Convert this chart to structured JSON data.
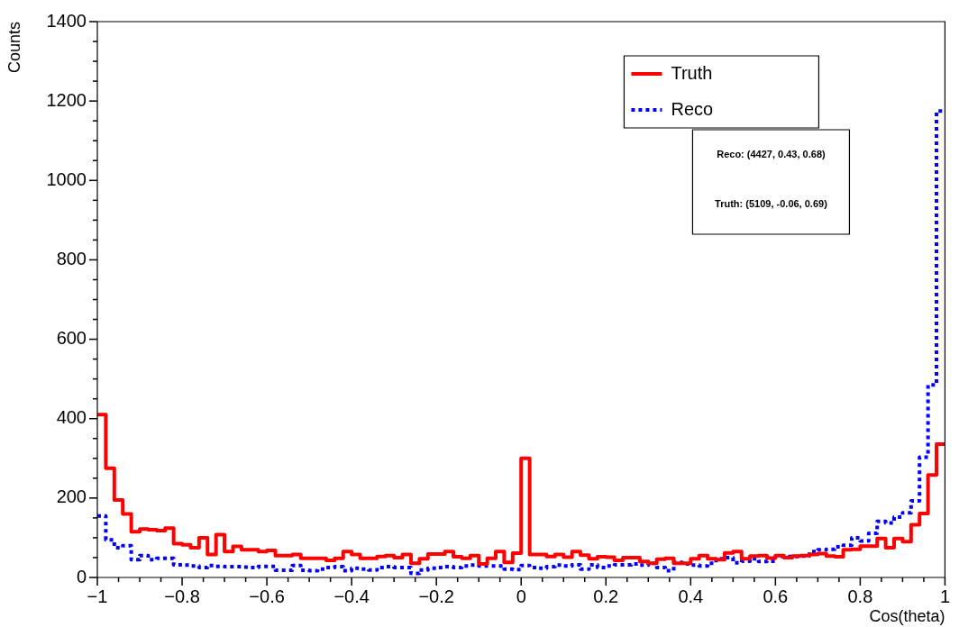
{
  "chart_data": {
    "type": "histogram",
    "xlabel": "Cos(theta)",
    "ylabel": "Counts",
    "bins": [
      -1,
      -0.98,
      -0.96,
      -0.94,
      -0.92,
      -0.9,
      -0.88,
      -0.86,
      -0.84,
      -0.82,
      -0.8,
      -0.78,
      -0.76,
      -0.74,
      -0.72,
      -0.7,
      -0.68,
      -0.66,
      -0.64,
      -0.62,
      -0.6,
      -0.58,
      -0.56,
      -0.54,
      -0.52,
      -0.5,
      -0.48,
      -0.46,
      -0.44,
      -0.42,
      -0.4,
      -0.38,
      -0.36,
      -0.34,
      -0.32,
      -0.3,
      -0.28,
      -0.26,
      -0.24,
      -0.22,
      -0.2,
      -0.18,
      -0.16,
      -0.14,
      -0.12,
      -0.1,
      -0.08,
      -0.06,
      -0.04,
      -0.02,
      0,
      0.02,
      0.04,
      0.06,
      0.08,
      0.1,
      0.12,
      0.14,
      0.16,
      0.18,
      0.2,
      0.22,
      0.24,
      0.26,
      0.28,
      0.3,
      0.32,
      0.34,
      0.36,
      0.38,
      0.4,
      0.42,
      0.44,
      0.46,
      0.48,
      0.5,
      0.52,
      0.54,
      0.56,
      0.58,
      0.6,
      0.62,
      0.64,
      0.66,
      0.68,
      0.7,
      0.72,
      0.74,
      0.76,
      0.78,
      0.8,
      0.82,
      0.84,
      0.86,
      0.88,
      0.9,
      0.92,
      0.94,
      0.96,
      0.98,
      1
    ],
    "series": [
      {
        "name": "Truth",
        "color": "#ff0000",
        "line_style": "solid",
        "values": [
          410,
          275,
          195,
          160,
          115,
          122,
          120,
          118,
          124,
          85,
          82,
          75,
          100,
          58,
          108,
          65,
          78,
          70,
          70,
          65,
          68,
          55,
          55,
          58,
          48,
          48,
          48,
          43,
          48,
          65,
          58,
          48,
          48,
          53,
          55,
          50,
          58,
          36,
          47,
          59,
          59,
          65,
          52,
          48,
          55,
          34,
          48,
          65,
          38,
          61,
          300,
          58,
          58,
          53,
          58,
          51,
          65,
          56,
          47,
          52,
          51,
          43,
          50,
          50,
          40,
          36,
          46,
          48,
          36,
          36,
          47,
          55,
          47,
          45,
          62,
          65,
          47,
          54,
          55,
          49,
          55,
          50,
          54,
          55,
          58,
          60,
          54,
          52,
          70,
          71,
          79,
          79,
          98,
          75,
          98,
          90,
          133,
          161,
          258,
          336
        ]
      },
      {
        "name": "Reco",
        "color": "#0000ff",
        "line_style": "dotted",
        "values": [
          155,
          95,
          75,
          80,
          45,
          55,
          45,
          48,
          48,
          32,
          31,
          29,
          25,
          30,
          28,
          27,
          27,
          26,
          25,
          28,
          28,
          18,
          18,
          30,
          18,
          17,
          21,
          25,
          27,
          17,
          23,
          21,
          19,
          25,
          27,
          25,
          25,
          10,
          19,
          23,
          25,
          27,
          25,
          29,
          31,
          29,
          29,
          29,
          21,
          20,
          30,
          25,
          23,
          27,
          31,
          29,
          32,
          21,
          32,
          25,
          29,
          32,
          32,
          34,
          31,
          36,
          25,
          17,
          38,
          34,
          31,
          29,
          36,
          47,
          50,
          37,
          41,
          47,
          40,
          41,
          53,
          53,
          53,
          54,
          65,
          70,
          71,
          77,
          81,
          100,
          92,
          111,
          141,
          137,
          152,
          163,
          193,
          303,
          485,
          1175
        ]
      }
    ],
    "xlim": [
      -1,
      1
    ],
    "xticks": [
      {
        "value": -1,
        "label": "−1"
      },
      {
        "value": -0.95,
        "label": null
      },
      {
        "value": -0.9,
        "label": null
      },
      {
        "value": -0.85,
        "label": null
      },
      {
        "value": -0.8,
        "label": "−0.8"
      },
      {
        "value": -0.75,
        "label": null
      },
      {
        "value": -0.7,
        "label": null
      },
      {
        "value": -0.65,
        "label": null
      },
      {
        "value": -0.6,
        "label": "−0.6"
      },
      {
        "value": -0.55,
        "label": null
      },
      {
        "value": -0.5,
        "label": null
      },
      {
        "value": -0.45,
        "label": null
      },
      {
        "value": -0.4,
        "label": "−0.4"
      },
      {
        "value": -0.35,
        "label": null
      },
      {
        "value": -0.3,
        "label": null
      },
      {
        "value": -0.25,
        "label": null
      },
      {
        "value": -0.2,
        "label": "−0.2"
      },
      {
        "value": -0.15,
        "label": null
      },
      {
        "value": -0.1,
        "label": null
      },
      {
        "value": -0.05,
        "label": null
      },
      0,
      {
        "value": 0.05,
        "label": null
      },
      {
        "value": 0.1,
        "label": null
      },
      {
        "value": 0.15,
        "label": null
      },
      0.2,
      {
        "value": 0.25,
        "label": null
      },
      {
        "value": 0.3,
        "label": null
      },
      {
        "value": 0.35,
        "label": null
      },
      0.4,
      {
        "value": 0.45,
        "label": null
      },
      {
        "value": 0.5,
        "label": null
      },
      {
        "value": 0.55,
        "label": null
      },
      0.6,
      {
        "value": 0.65,
        "label": null
      },
      {
        "value": 0.7,
        "label": null
      },
      {
        "value": 0.75,
        "label": null
      },
      0.8,
      {
        "value": 0.85,
        "label": null
      },
      {
        "value": 0.9,
        "label": null
      },
      {
        "value": 0.95,
        "label": null
      },
      1
    ],
    "ylim": [
      0,
      1400
    ],
    "yticks": [
      0,
      {
        "value": 50,
        "label": null
      },
      {
        "value": 100,
        "label": null
      },
      {
        "value": 150,
        "label": null
      },
      200,
      {
        "value": 250,
        "label": null
      },
      {
        "value": 300,
        "label": null
      },
      {
        "value": 350,
        "label": null
      },
      400,
      {
        "value": 450,
        "label": null
      },
      {
        "value": 500,
        "label": null
      },
      {
        "value": 550,
        "label": null
      },
      600,
      {
        "value": 650,
        "label": null
      },
      {
        "value": 700,
        "label": null
      },
      {
        "value": 750,
        "label": null
      },
      800,
      {
        "value": 850,
        "label": null
      },
      {
        "value": 900,
        "label": null
      },
      {
        "value": 950,
        "label": null
      },
      1000,
      {
        "value": 1050,
        "label": null
      },
      {
        "value": 1100,
        "label": null
      },
      {
        "value": 1150,
        "label": null
      },
      1200,
      {
        "value": 1250,
        "label": null
      },
      {
        "value": 1300,
        "label": null
      },
      {
        "value": 1350,
        "label": null
      },
      1400
    ],
    "legend": "top right",
    "annotations": [
      "Reco: (4427, 0.43, 0.68)",
      "Truth: (5109, -0.06, 0.69)"
    ]
  }
}
